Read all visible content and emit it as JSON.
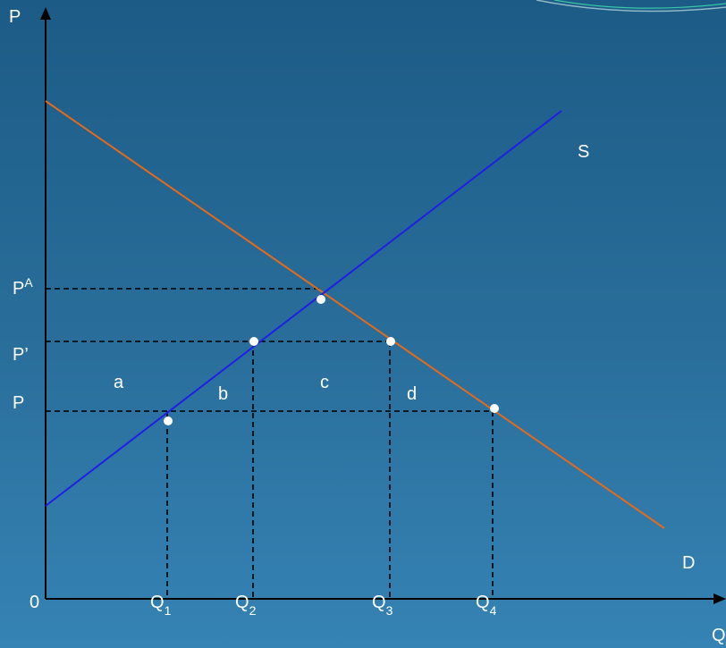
{
  "axes": {
    "y_label": "P",
    "x_label": "Q",
    "origin": "0"
  },
  "curves": {
    "supply": {
      "label": "S",
      "color": "#1f1fe6"
    },
    "demand": {
      "label": "D",
      "color": "#e46a1a",
      "label_color": "#e00000"
    }
  },
  "price_labels": {
    "autarky": {
      "base": "P",
      "sup": "A"
    },
    "p_prime": "P’",
    "p": "P"
  },
  "quantity_labels": [
    {
      "base": "Q",
      "sub": "1"
    },
    {
      "base": "Q",
      "sub": "2"
    },
    {
      "base": "Q",
      "sub": "3"
    },
    {
      "base": "Q",
      "sub": "4"
    }
  ],
  "area_labels": [
    "a",
    "b",
    "c",
    "d"
  ]
}
